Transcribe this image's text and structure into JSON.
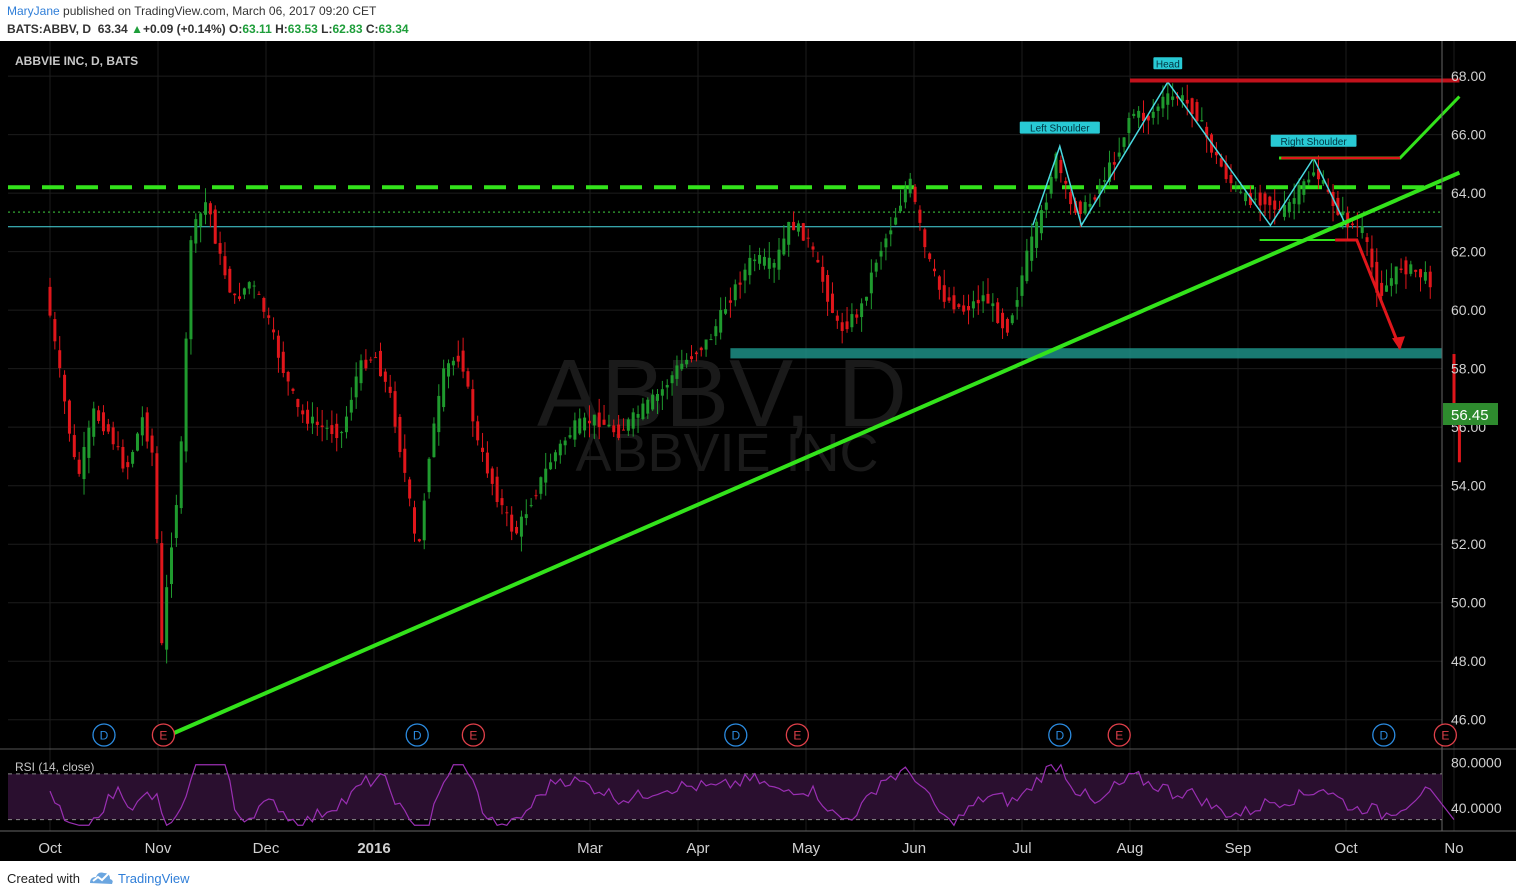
{
  "header": {
    "author": "MaryJane",
    "published_text": "published on TradingView.com, March 06, 2017 09:20 CET",
    "symbol": "BATS:ABBV, D",
    "last": "63.34",
    "change": "+0.09 (+0.14%)",
    "o_label": "O:",
    "o": "63.11",
    "h_label": "H:",
    "h": "63.53",
    "l_label": "L:",
    "l": "62.83",
    "c_label": "C:",
    "c": "63.34"
  },
  "legend_text": "ABBVIE INC, D, BATS",
  "watermark": {
    "symbol": "ABBV, D",
    "name": "ABBVIE INC"
  },
  "rsi_label": "RSI (14, close)",
  "current_price_label": "56.45",
  "annotations": {
    "head": "Head",
    "left_shoulder": "Left Shoulder",
    "right_shoulder": "Right Shoulder"
  },
  "events": [
    {
      "label": "D",
      "type": "dividend",
      "month_pos": 0.5
    },
    {
      "label": "E",
      "type": "earnings",
      "month_pos": 1.05
    },
    {
      "label": "D",
      "type": "dividend",
      "month_pos": 3.4
    },
    {
      "label": "E",
      "type": "earnings",
      "month_pos": 3.92
    },
    {
      "label": "D",
      "type": "dividend",
      "month_pos": 6.35
    },
    {
      "label": "E",
      "type": "earnings",
      "month_pos": 6.92
    },
    {
      "label": "D",
      "type": "dividend",
      "month_pos": 9.35
    },
    {
      "label": "E",
      "type": "earnings",
      "month_pos": 9.9
    },
    {
      "label": "D",
      "type": "dividend",
      "month_pos": 12.35
    },
    {
      "label": "E",
      "type": "earnings",
      "month_pos": 12.92
    }
  ],
  "colors": {
    "background": "#000000",
    "up": "#1f9a2e",
    "down": "#e0161b",
    "trendline": "#33e31b",
    "support_band": "#1d8f86",
    "neckline": "#49d9e0",
    "resistance": "#c2121c",
    "rsi": "#9a2fb3"
  },
  "footer": {
    "created": "Created with",
    "brand": "TradingView"
  },
  "chart_data": {
    "type": "candlestick",
    "title": "ABBVIE INC, D, BATS",
    "x_axis": {
      "labels": [
        "Oct",
        "Nov",
        "Dec",
        "2016",
        "Mar",
        "Apr",
        "May",
        "Jun",
        "Jul",
        "Aug",
        "Sep",
        "Oct",
        "No"
      ],
      "label_positions": [
        0,
        1,
        2,
        3,
        5,
        6,
        7,
        8,
        9,
        10,
        11,
        12,
        13
      ]
    },
    "y_axis": {
      "ticks": [
        "68.00",
        "66.00",
        "64.00",
        "62.00",
        "60.00",
        "58.00",
        "56.00",
        "54.00",
        "52.00",
        "50.00",
        "48.00",
        "46.00"
      ],
      "ylim": [
        45.0,
        69.2
      ]
    },
    "price_path": [
      [
        0,
        60.8
      ],
      [
        0.15,
        57.5
      ],
      [
        0.3,
        54.2
      ],
      [
        0.45,
        56.5
      ],
      [
        0.6,
        55.8
      ],
      [
        0.75,
        54.5
      ],
      [
        0.9,
        56.3
      ],
      [
        1.0,
        55.0
      ],
      [
        1.08,
        48.5
      ],
      [
        1.15,
        51.5
      ],
      [
        1.25,
        54.5
      ],
      [
        1.35,
        62.5
      ],
      [
        1.5,
        63.8
      ],
      [
        1.6,
        62.0
      ],
      [
        1.75,
        60.3
      ],
      [
        1.9,
        61.0
      ],
      [
        2.05,
        59.8
      ],
      [
        2.2,
        58.0
      ],
      [
        2.35,
        56.5
      ],
      [
        2.55,
        56.0
      ],
      [
        2.75,
        55.8
      ],
      [
        2.9,
        58.0
      ],
      [
        3.05,
        58.5
      ],
      [
        3.2,
        57.0
      ],
      [
        3.35,
        54.0
      ],
      [
        3.45,
        51.5
      ],
      [
        3.55,
        55.0
      ],
      [
        3.7,
        58.0
      ],
      [
        3.85,
        58.5
      ],
      [
        4.0,
        55.5
      ],
      [
        4.2,
        53.5
      ],
      [
        4.35,
        52.3
      ],
      [
        4.5,
        53.5
      ],
      [
        4.7,
        55.0
      ],
      [
        4.9,
        56.0
      ],
      [
        5.1,
        56.3
      ],
      [
        5.3,
        55.8
      ],
      [
        5.5,
        56.5
      ],
      [
        5.7,
        57.2
      ],
      [
        5.85,
        58.0
      ],
      [
        6.0,
        58.5
      ],
      [
        6.15,
        59.0
      ],
      [
        6.35,
        60.5
      ],
      [
        6.55,
        61.8
      ],
      [
        6.75,
        61.5
      ],
      [
        6.9,
        63.0
      ],
      [
        7.05,
        62.5
      ],
      [
        7.2,
        61.0
      ],
      [
        7.35,
        59.3
      ],
      [
        7.55,
        60.0
      ],
      [
        7.7,
        61.8
      ],
      [
        7.85,
        63.0
      ],
      [
        8.0,
        64.5
      ],
      [
        8.15,
        62.0
      ],
      [
        8.3,
        60.5
      ],
      [
        8.5,
        60.0
      ],
      [
        8.7,
        60.5
      ],
      [
        8.9,
        59.3
      ],
      [
        9.0,
        60.5
      ],
      [
        9.1,
        62.0
      ],
      [
        9.25,
        63.5
      ],
      [
        9.35,
        65.3
      ],
      [
        9.5,
        63.5
      ],
      [
        9.65,
        63.5
      ],
      [
        9.8,
        64.5
      ],
      [
        9.95,
        65.5
      ],
      [
        10.05,
        66.8
      ],
      [
        10.2,
        66.5
      ],
      [
        10.35,
        67.2
      ],
      [
        10.5,
        67.3
      ],
      [
        10.65,
        66.8
      ],
      [
        10.8,
        65.5
      ],
      [
        10.95,
        64.5
      ],
      [
        11.1,
        63.8
      ],
      [
        11.3,
        63.8
      ],
      [
        11.45,
        63.3
      ],
      [
        11.6,
        64.0
      ],
      [
        11.75,
        64.8
      ],
      [
        11.9,
        63.8
      ],
      [
        12.05,
        63.0
      ],
      [
        12.2,
        62.7
      ],
      [
        12.35,
        60.5
      ],
      [
        12.55,
        61.5
      ],
      [
        12.7,
        61.3
      ],
      [
        12.82,
        61.0
      ]
    ],
    "last_bars": [
      [
        13.0,
        57.5
      ],
      [
        13.05,
        55.8
      ]
    ],
    "rsi": {
      "name": "RSI (14, close)",
      "ticks": [
        "80.0000",
        "40.0000"
      ],
      "ylim": [
        20,
        90
      ],
      "levels": [
        70,
        30
      ]
    },
    "annotations": [
      "Head",
      "Left Shoulder",
      "Right Shoulder"
    ],
    "last_price": 56.45
  }
}
